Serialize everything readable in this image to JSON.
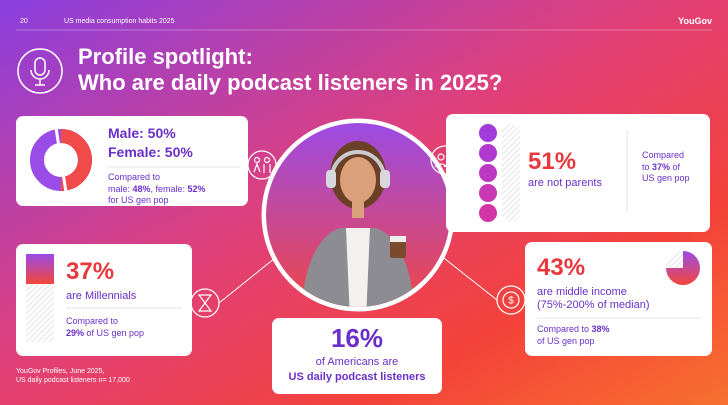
{
  "header": {
    "page": "20",
    "section": "US media consumption habits 2025",
    "brand": "YouGov"
  },
  "title": {
    "line1": "Profile spotlight:",
    "line2": "Who are daily podcast listeners in 2025?"
  },
  "gender": {
    "male": "Male: 50%",
    "female": "Female: 50%",
    "compare": {
      "lead": "Compared to",
      "male_label": "male: ",
      "male_value": "48%",
      "female_label": ", female: ",
      "female_value": "52%",
      "tail": "for US gen pop"
    }
  },
  "parents": {
    "value": "51%",
    "label": "are not parents",
    "compare": {
      "lead": "Compared",
      "mid": "to ",
      "value": "37%",
      "after": " of",
      "tail": "US gen pop"
    }
  },
  "millennials": {
    "value": "37%",
    "label": "are Millennials",
    "compare": {
      "lead": "Compared to",
      "value": "29%",
      "tail": " of US gen pop"
    }
  },
  "income": {
    "value": "43%",
    "label": "are middle income",
    "sublabel": "(75%-200% of median)",
    "compare": {
      "lead": "Compared to ",
      "value": "38%",
      "tail": "of US gen pop"
    }
  },
  "center": {
    "value": "16%",
    "line1": "of Americans are",
    "line2": "US daily podcast listeners"
  },
  "source": {
    "line1": "YouGov Profiles, June 2025,",
    "line2": "US daily podcast listeners n= 17,000"
  }
}
